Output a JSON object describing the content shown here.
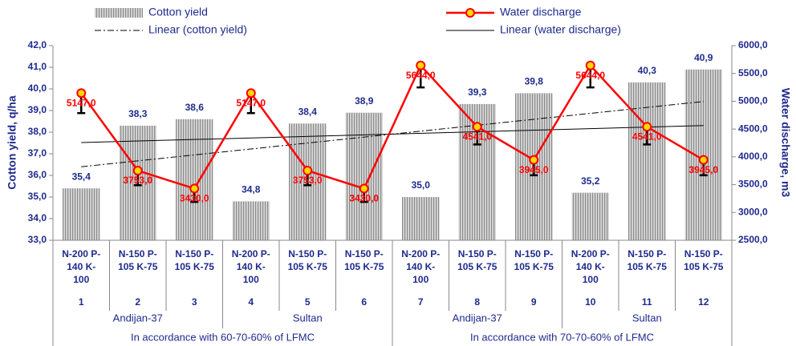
{
  "chart_data": {
    "type": "bar-line",
    "y_label": "Cotton yield, q/ha",
    "y2_label": "Water discharge, m3",
    "categories": [
      [
        "N-200 P-",
        "140  K-",
        "100"
      ],
      [
        "N-150 P-",
        "105 K-75"
      ],
      [
        "N-150 P-",
        "105 K-75"
      ],
      [
        "N-200 P-",
        "140  K-",
        "100"
      ],
      [
        "N-150 P-",
        "105 K-75"
      ],
      [
        "N-150 P-",
        "105 K-75"
      ],
      [
        "N-200 P-",
        "140  K-",
        "100"
      ],
      [
        "N-150 P-",
        "105 K-75"
      ],
      [
        "N-150 P-",
        "105 K-75"
      ],
      [
        "N-200 P-",
        "140  K-",
        "100"
      ],
      [
        "N-150 P-",
        "105 K-75"
      ],
      [
        "N-150 P-",
        "105 K-75"
      ]
    ],
    "category_numbers": [
      "1",
      "2",
      "3",
      "4",
      "5",
      "6",
      "7",
      "8",
      "9",
      "10",
      "11",
      "12"
    ],
    "varieties": [
      "Andijan-37",
      "Sultan",
      "Andijan-37",
      "Sultan"
    ],
    "regimes": [
      "In accordance with 60-70-60% of LFMC",
      "In accordance with 70-70-60% of LFMC"
    ],
    "ylim": [
      33,
      42
    ],
    "yticks": [
      {
        "value": 33,
        "label": "33,0"
      },
      {
        "value": 34,
        "label": "34,0"
      },
      {
        "value": 35,
        "label": "35,0"
      },
      {
        "value": 36,
        "label": "36,0"
      },
      {
        "value": 37,
        "label": "37,0"
      },
      {
        "value": 38,
        "label": "38,0"
      },
      {
        "value": 39,
        "label": "39,0"
      },
      {
        "value": 40,
        "label": "40,0"
      },
      {
        "value": 41,
        "label": "41,0"
      },
      {
        "value": 42,
        "label": "42,0"
      }
    ],
    "y2lim": [
      2500,
      6000
    ],
    "y2ticks": [
      {
        "value": 2500,
        "label": "2500,0"
      },
      {
        "value": 3000,
        "label": "3000,0"
      },
      {
        "value": 3500,
        "label": "3500,0"
      },
      {
        "value": 4000,
        "label": "4000,0"
      },
      {
        "value": 4500,
        "label": "4500,0"
      },
      {
        "value": 5000,
        "label": "5000,0"
      },
      {
        "value": 5500,
        "label": "5500,0"
      },
      {
        "value": 6000,
        "label": "6000,0"
      }
    ],
    "series": [
      {
        "name": "Cotton yield",
        "type": "bar",
        "color": "#a0a0a0",
        "values": [
          35.4,
          38.3,
          38.6,
          34.8,
          38.4,
          38.9,
          35.0,
          39.3,
          39.8,
          35.2,
          40.3,
          40.9
        ],
        "value_labels": [
          "35,4",
          "38,3",
          "38,6",
          "34,8",
          "38,4",
          "38,9",
          "35,0",
          "39,3",
          "39,8",
          "35,2",
          "40,3",
          "40,9"
        ],
        "trendline": {
          "name": "Linear (cotton yield)",
          "style": "dash-dot",
          "color": "#000000"
        }
      },
      {
        "name": "Water discharge",
        "type": "line",
        "axis": "y2",
        "color": "#ff0000",
        "marker_color": "#ffd700",
        "values": [
          5147,
          3753,
          3430,
          5147,
          3753,
          3430,
          5644,
          4541,
          3945,
          5644,
          4541,
          3945
        ],
        "value_labels": [
          "5147,0",
          "3753,0",
          "3430,0",
          "5147,0",
          "3753,0",
          "3430,0",
          "5644,0",
          "4541,0",
          "3945,0",
          "5644,0",
          "4541,0",
          "3945,0"
        ],
        "errors": [
          360,
          263,
          240,
          360,
          263,
          240,
          395,
          318,
          276,
          395,
          318,
          276
        ],
        "trendline": {
          "name": "Linear (water discharge)",
          "style": "solid",
          "color": "#000000"
        }
      }
    ]
  }
}
